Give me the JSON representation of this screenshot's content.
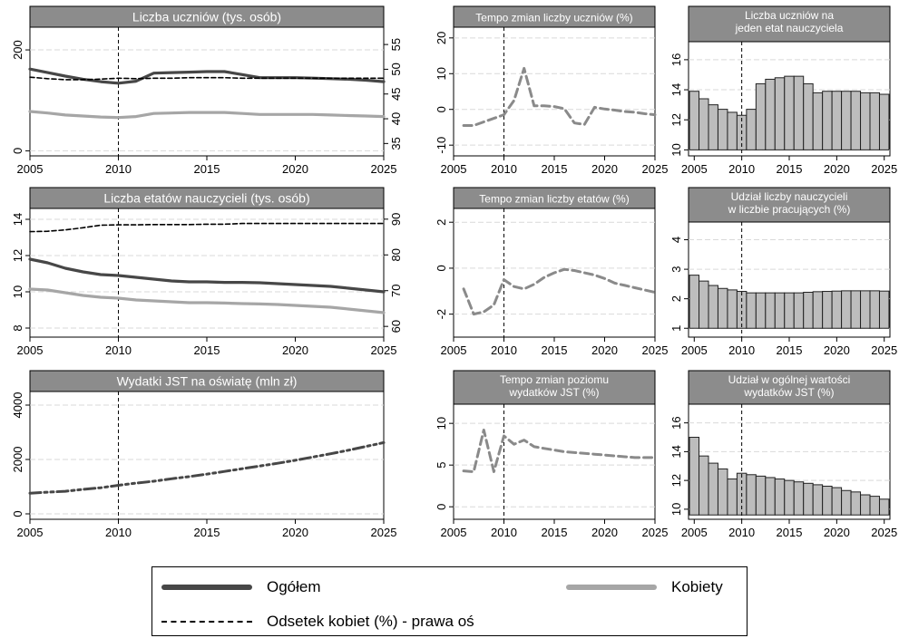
{
  "legend": {
    "ogolem": "Ogółem",
    "kobiety": "Kobiety",
    "odsetek": "Odsetek kobiet (%) - prawa oś"
  },
  "colors": {
    "ogolem": "#474747",
    "kobiety": "#a6a6a6",
    "odsetek": "#000000",
    "header_bg": "#8c8c8c",
    "header_text": "#ffffff",
    "bar_fill": "#bdbdbd",
    "plot_bg": "#ffffff",
    "grid": "#d9d9d9"
  },
  "chart_data": [
    {
      "id": "p1",
      "type": "line",
      "title": "Liczba uczniów (tys. osób)",
      "xlim": [
        2005,
        2025
      ],
      "xticks": [
        2005,
        2010,
        2015,
        2020,
        2025
      ],
      "ylim": [
        -10,
        245
      ],
      "yticks": [
        0,
        200
      ],
      "y2lim": [
        32.5,
        58.5
      ],
      "y2ticks": [
        35,
        40,
        45,
        50,
        55
      ],
      "vline": 2010,
      "x": [
        2005,
        2006,
        2007,
        2008,
        2009,
        2010,
        2011,
        2012,
        2013,
        2014,
        2015,
        2016,
        2017,
        2018,
        2019,
        2020,
        2021,
        2022,
        2023,
        2024,
        2025
      ],
      "series": [
        {
          "name": "Ogółem",
          "axis": "left",
          "style": "ogolem",
          "values": [
            162,
            155,
            148,
            142,
            137,
            134,
            138,
            154,
            155,
            156,
            157,
            157,
            151,
            145,
            145,
            145,
            144,
            143,
            142,
            140,
            137
          ]
        },
        {
          "name": "Kobiety",
          "axis": "left",
          "style": "kobiety",
          "values": [
            78,
            75,
            71,
            69,
            67,
            66,
            68,
            74,
            75,
            76,
            76,
            76,
            74,
            72,
            72,
            72,
            72,
            71,
            70,
            69,
            68
          ]
        },
        {
          "name": "Odsetek kobiet (%) - prawa oś",
          "axis": "right",
          "style": "odsetek",
          "values": [
            48.4,
            48.1,
            47.9,
            47.9,
            48.0,
            48.2,
            48.1,
            48.2,
            48.2,
            48.3,
            48.3,
            48.3,
            48.2,
            48.2,
            48.2,
            48.2,
            48.2,
            48.2,
            48.2,
            48.2,
            48.2
          ]
        }
      ]
    },
    {
      "id": "p2",
      "type": "line",
      "title": "Tempo zmian liczby uczniów (%)",
      "xlim": [
        2005,
        2025
      ],
      "xticks": [
        2005,
        2010,
        2015,
        2020,
        2025
      ],
      "ylim": [
        -13,
        23
      ],
      "yticks": [
        -10,
        0,
        10,
        20
      ],
      "vline": 2010,
      "x": [
        2006,
        2007,
        2008,
        2009,
        2010,
        2011,
        2012,
        2013,
        2014,
        2015,
        2016,
        2017,
        2018,
        2019,
        2020,
        2021,
        2022,
        2023,
        2024,
        2025
      ],
      "series": [
        {
          "name": "",
          "style": "tempo",
          "values": [
            -4.5,
            -4.5,
            -3.5,
            -2.5,
            -1.5,
            2.5,
            11.5,
            1.0,
            1.0,
            0.8,
            0.2,
            -3.8,
            -4.2,
            0.6,
            0.1,
            -0.2,
            -0.6,
            -0.8,
            -1.2,
            -1.5
          ]
        }
      ]
    },
    {
      "id": "p3",
      "type": "bar",
      "title": "Liczba uczniów na jeden etat nauczyciela",
      "title_lines": [
        "Liczba uczniów na",
        "jeden etat nauczyciela"
      ],
      "xlim": [
        2004.4,
        2025.6
      ],
      "xticks": [
        2005,
        2010,
        2015,
        2020,
        2025
      ],
      "ylim": [
        9.6,
        17.2
      ],
      "yticks": [
        10,
        12,
        14,
        16
      ],
      "baseline": 10,
      "vline": 2010,
      "categories": [
        2005,
        2006,
        2007,
        2008,
        2009,
        2010,
        2011,
        2012,
        2013,
        2014,
        2015,
        2016,
        2017,
        2018,
        2019,
        2020,
        2021,
        2022,
        2023,
        2024,
        2025
      ],
      "values": [
        13.9,
        13.4,
        13.0,
        12.7,
        12.5,
        12.3,
        12.7,
        14.4,
        14.7,
        14.8,
        14.9,
        14.9,
        14.4,
        13.8,
        13.9,
        13.9,
        13.9,
        13.9,
        13.8,
        13.8,
        13.7
      ]
    },
    {
      "id": "p4",
      "type": "line",
      "title": "Liczba etatów nauczycieli (tys. osób)",
      "xlim": [
        2005,
        2025
      ],
      "xticks": [
        2005,
        2010,
        2015,
        2020,
        2025
      ],
      "ylim": [
        7.5,
        14.6
      ],
      "yticks": [
        8,
        10,
        12,
        14
      ],
      "y2lim": [
        57.0,
        93.0
      ],
      "y2ticks": [
        60,
        70,
        80,
        90
      ],
      "vline": 2010,
      "x": [
        2005,
        2006,
        2007,
        2008,
        2009,
        2010,
        2011,
        2012,
        2013,
        2014,
        2015,
        2016,
        2017,
        2018,
        2019,
        2020,
        2021,
        2022,
        2023,
        2024,
        2025
      ],
      "series": [
        {
          "name": "Ogółem",
          "axis": "left",
          "style": "ogolem",
          "values": [
            11.8,
            11.6,
            11.3,
            11.1,
            10.95,
            10.9,
            10.8,
            10.7,
            10.6,
            10.55,
            10.55,
            10.52,
            10.52,
            10.5,
            10.45,
            10.4,
            10.35,
            10.3,
            10.2,
            10.1,
            10.0
          ]
        },
        {
          "name": "Kobiety",
          "axis": "left",
          "style": "kobiety",
          "values": [
            10.15,
            10.1,
            9.95,
            9.8,
            9.7,
            9.65,
            9.55,
            9.5,
            9.45,
            9.4,
            9.4,
            9.38,
            9.35,
            9.33,
            9.3,
            9.25,
            9.2,
            9.15,
            9.05,
            8.95,
            8.85
          ]
        },
        {
          "name": "Odsetek kobiet (%) - prawa oś",
          "axis": "right",
          "style": "odsetek",
          "values": [
            86.5,
            86.6,
            87.0,
            87.6,
            88.3,
            88.4,
            88.4,
            88.5,
            88.5,
            88.5,
            88.6,
            88.6,
            88.8,
            88.8,
            88.8,
            88.8,
            88.8,
            88.8,
            88.8,
            88.8,
            88.8
          ]
        }
      ]
    },
    {
      "id": "p5",
      "type": "line",
      "title": "Tempo zmian liczby etatów (%)",
      "xlim": [
        2005,
        2025
      ],
      "xticks": [
        2005,
        2010,
        2015,
        2020,
        2025
      ],
      "ylim": [
        -3.0,
        2.6
      ],
      "yticks": [
        -2,
        0,
        2
      ],
      "vline": 2010,
      "x": [
        2006,
        2007,
        2008,
        2009,
        2010,
        2011,
        2012,
        2013,
        2014,
        2015,
        2016,
        2017,
        2018,
        2019,
        2020,
        2021,
        2022,
        2023,
        2024,
        2025
      ],
      "series": [
        {
          "name": "",
          "style": "tempo",
          "values": [
            -0.9,
            -2.0,
            -1.9,
            -1.6,
            -0.5,
            -0.8,
            -0.9,
            -0.7,
            -0.4,
            -0.2,
            -0.05,
            -0.1,
            -0.2,
            -0.3,
            -0.45,
            -0.65,
            -0.75,
            -0.85,
            -0.95,
            -1.05
          ]
        }
      ]
    },
    {
      "id": "p6",
      "type": "bar",
      "title": "Udział liczby nauczycieli w liczbie pracujących (%)",
      "title_lines": [
        "Udział liczby nauczycieli",
        "w liczbie pracujących (%)"
      ],
      "xlim": [
        2004.4,
        2025.6
      ],
      "xticks": [
        2005,
        2010,
        2015,
        2020,
        2025
      ],
      "ylim": [
        0.7,
        4.6
      ],
      "yticks": [
        1,
        2,
        3,
        4
      ],
      "baseline": 1,
      "vline": 2010,
      "categories": [
        2005,
        2006,
        2007,
        2008,
        2009,
        2010,
        2011,
        2012,
        2013,
        2014,
        2015,
        2016,
        2017,
        2018,
        2019,
        2020,
        2021,
        2022,
        2023,
        2024,
        2025
      ],
      "values": [
        2.8,
        2.6,
        2.45,
        2.35,
        2.3,
        2.25,
        2.2,
        2.2,
        2.2,
        2.2,
        2.2,
        2.2,
        2.22,
        2.24,
        2.25,
        2.26,
        2.27,
        2.27,
        2.27,
        2.27,
        2.26
      ]
    },
    {
      "id": "p7",
      "type": "line",
      "title": "Wydatki JST na oświatę (mln zł)",
      "xlim": [
        2005,
        2025
      ],
      "xticks": [
        2005,
        2010,
        2015,
        2020,
        2025
      ],
      "ylim": [
        -200,
        4500
      ],
      "yticks": [
        0,
        2000,
        4000
      ],
      "vline": 2010,
      "x": [
        2005,
        2006,
        2007,
        2008,
        2009,
        2010,
        2011,
        2012,
        2013,
        2014,
        2015,
        2016,
        2017,
        2018,
        2019,
        2020,
        2021,
        2022,
        2023,
        2024,
        2025
      ],
      "series": [
        {
          "name": "",
          "style": "wydatki",
          "values": [
            760,
            795,
            830,
            900,
            960,
            1050,
            1130,
            1200,
            1290,
            1370,
            1460,
            1560,
            1660,
            1760,
            1860,
            1970,
            2090,
            2210,
            2340,
            2480,
            2620
          ]
        }
      ]
    },
    {
      "id": "p8",
      "type": "line",
      "title": "Tempo zmian poziomu wydatków JST (%)",
      "title_lines": [
        "Tempo zmian poziomu",
        "wydatków JST (%)"
      ],
      "xlim": [
        2005,
        2025
      ],
      "xticks": [
        2005,
        2010,
        2015,
        2020,
        2025
      ],
      "ylim": [
        -1.5,
        12.3
      ],
      "yticks": [
        0,
        5,
        10
      ],
      "vline": 2010,
      "x": [
        2006,
        2007,
        2008,
        2009,
        2010,
        2011,
        2012,
        2013,
        2014,
        2015,
        2016,
        2017,
        2018,
        2019,
        2020,
        2021,
        2022,
        2023,
        2024,
        2025
      ],
      "series": [
        {
          "name": "",
          "style": "tempo",
          "values": [
            4.3,
            4.2,
            9.2,
            4.2,
            8.5,
            7.5,
            8.0,
            7.2,
            7.0,
            6.8,
            6.6,
            6.5,
            6.4,
            6.3,
            6.2,
            6.1,
            6.0,
            5.9,
            5.9,
            5.9
          ]
        }
      ]
    },
    {
      "id": "p9",
      "type": "bar",
      "title": "Udział w ogólnej wartości wydatków JST (%)",
      "title_lines": [
        "Udział w ogólnej wartości",
        "wydatków JST (%)"
      ],
      "xlim": [
        2004.4,
        2025.6
      ],
      "xticks": [
        2005,
        2010,
        2015,
        2020,
        2025
      ],
      "ylim": [
        9.3,
        17.3
      ],
      "yticks": [
        10,
        12,
        14,
        16
      ],
      "baseline": 9.6,
      "vline": 2010,
      "categories": [
        2005,
        2006,
        2007,
        2008,
        2009,
        2010,
        2011,
        2012,
        2013,
        2014,
        2015,
        2016,
        2017,
        2018,
        2019,
        2020,
        2021,
        2022,
        2023,
        2024,
        2025
      ],
      "values": [
        15.0,
        13.7,
        13.2,
        12.8,
        12.1,
        12.5,
        12.4,
        12.3,
        12.2,
        12.1,
        12.0,
        11.9,
        11.8,
        11.7,
        11.6,
        11.5,
        11.3,
        11.2,
        11.0,
        10.9,
        10.7
      ]
    }
  ]
}
